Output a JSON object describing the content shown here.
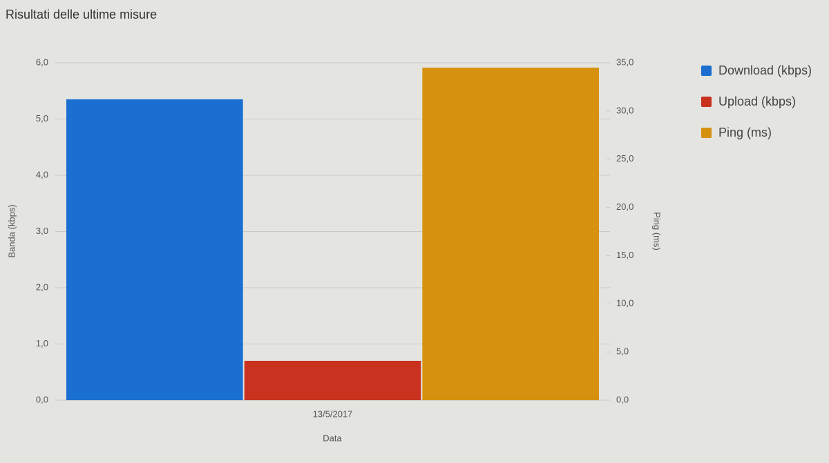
{
  "chart_data": {
    "type": "bar",
    "title": "Risultati delle ultime misure",
    "categories": [
      "13/5/2017"
    ],
    "x_label": "Data",
    "y_label": "Banda (kbps)",
    "y2_label": "Ping (ms)",
    "series": [
      {
        "name": "Download (kbps)",
        "color": "#1a6fd0",
        "values": [
          5.35
        ]
      },
      {
        "name": "Upload (kbps)",
        "color": "#c8321e",
        "values": [
          0.7
        ]
      },
      {
        "name": "Ping (ms)",
        "color": "#d6920f",
        "values": [
          34.5
        ],
        "axis": "y2"
      }
    ],
    "ylim": [
      0,
      6
    ],
    "yticks": [
      {
        "value": 0,
        "label": "0,0"
      },
      {
        "value": 1,
        "label": "1,0"
      },
      {
        "value": 2,
        "label": "2,0"
      },
      {
        "value": 3,
        "label": "3,0"
      },
      {
        "value": 4,
        "label": "4,0"
      },
      {
        "value": 5,
        "label": "5,0"
      },
      {
        "value": 6,
        "label": "6,0"
      }
    ],
    "y2lim": [
      0,
      35
    ],
    "y2ticks": [
      {
        "value": 0,
        "label": "0,0"
      },
      {
        "value": 5,
        "label": "5,0"
      },
      {
        "value": 10,
        "label": "10,0"
      },
      {
        "value": 15,
        "label": "15,0"
      },
      {
        "value": 20,
        "label": "20,0"
      },
      {
        "value": 25,
        "label": "25,0"
      },
      {
        "value": 30,
        "label": "30,0"
      },
      {
        "value": 35,
        "label": "35,0"
      }
    ],
    "grid": true,
    "legend": "right"
  }
}
